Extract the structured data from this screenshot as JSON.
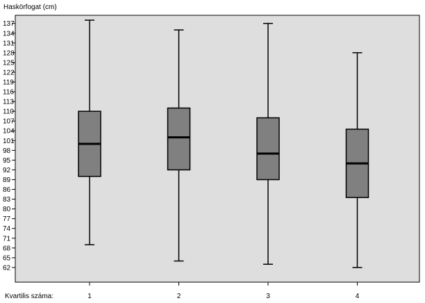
{
  "chart_data": {
    "type": "boxplot",
    "ylabel": "Haskörfogat (cm)",
    "xlabel": "Kvartilis száma:",
    "yticks": [
      62,
      65,
      68,
      71,
      74,
      77,
      80,
      83,
      86,
      89,
      92,
      95,
      98,
      101,
      104,
      107,
      110,
      113,
      116,
      119,
      122,
      125,
      128,
      131,
      134,
      137
    ],
    "ylim": [
      57.5,
      139.5
    ],
    "grid": false,
    "categories": [
      "1",
      "2",
      "3",
      "4"
    ],
    "boxes": [
      {
        "category": "1",
        "min": 69,
        "q1": 90,
        "median": 100,
        "q3": 110,
        "max": 138
      },
      {
        "category": "2",
        "min": 64,
        "q1": 92,
        "median": 102,
        "q3": 111,
        "max": 135
      },
      {
        "category": "3",
        "min": 63,
        "q1": 89,
        "median": 97,
        "q3": 108,
        "max": 137
      },
      {
        "category": "4",
        "min": 62,
        "q1": 83.5,
        "median": 94,
        "q3": 104.5,
        "max": 128
      }
    ],
    "colors": {
      "plot_background": "#dedede",
      "box_fill": "#808080",
      "line": "#000000"
    }
  }
}
